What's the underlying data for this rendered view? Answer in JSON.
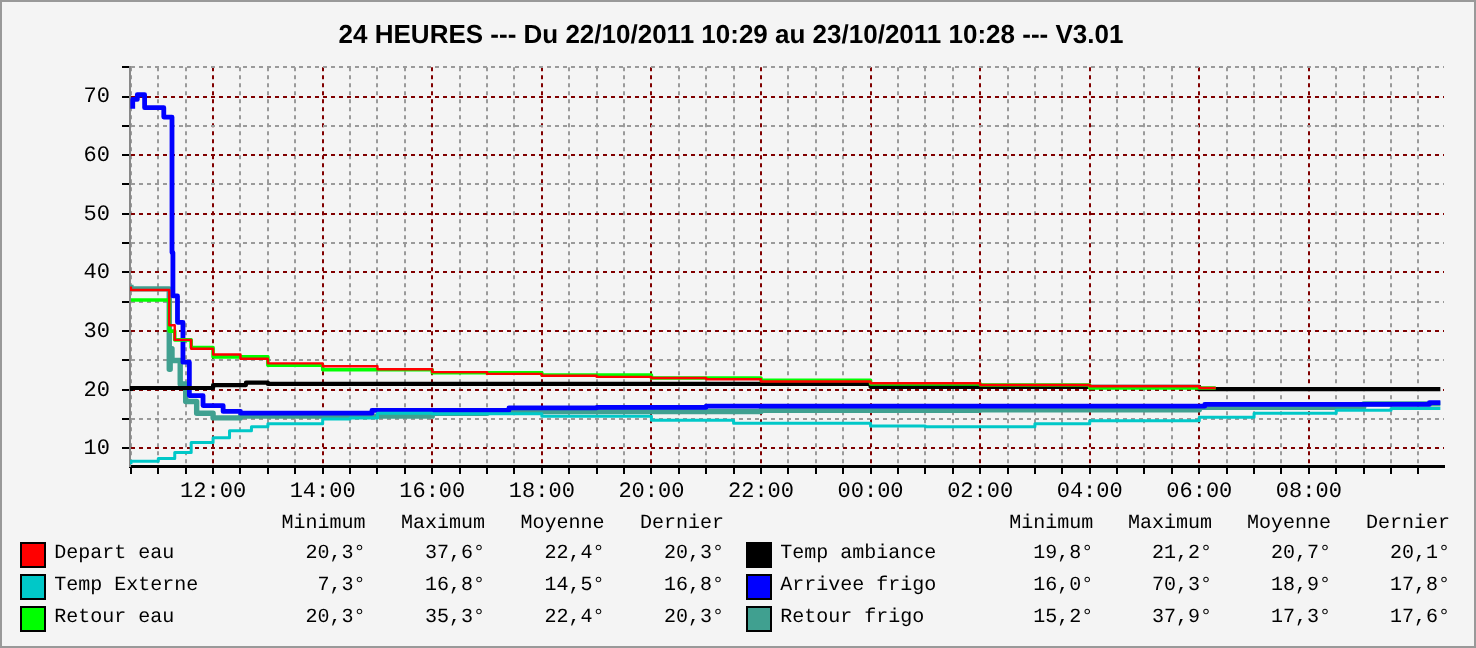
{
  "chart_data": {
    "type": "step",
    "title": "24 HEURES --- Du 22/10/2011 10:29 au 23/10/2011 10:28 --- V3.01",
    "xlim": [
      "2011-10-22T10:29",
      "2011-10-23T10:28"
    ],
    "xticks": [
      {
        "value": "2011-10-22T10:30",
        "label": null
      },
      {
        "value": "2011-10-22T11:00",
        "label": null
      },
      {
        "value": "2011-10-22T11:30",
        "label": null
      },
      {
        "value": "2011-10-22T12:00",
        "label": "12:00"
      },
      {
        "value": "2011-10-22T12:30",
        "label": null
      },
      {
        "value": "2011-10-22T13:00",
        "label": null
      },
      {
        "value": "2011-10-22T13:30",
        "label": null
      },
      {
        "value": "2011-10-22T14:00",
        "label": "14:00"
      },
      {
        "value": "2011-10-22T14:30",
        "label": null
      },
      {
        "value": "2011-10-22T15:00",
        "label": null
      },
      {
        "value": "2011-10-22T15:30",
        "label": null
      },
      {
        "value": "2011-10-22T16:00",
        "label": "16:00"
      },
      {
        "value": "2011-10-22T16:30",
        "label": null
      },
      {
        "value": "2011-10-22T17:00",
        "label": null
      },
      {
        "value": "2011-10-22T17:30",
        "label": null
      },
      {
        "value": "2011-10-22T18:00",
        "label": "18:00"
      },
      {
        "value": "2011-10-22T18:30",
        "label": null
      },
      {
        "value": "2011-10-22T19:00",
        "label": null
      },
      {
        "value": "2011-10-22T19:30",
        "label": null
      },
      {
        "value": "2011-10-22T20:00",
        "label": "20:00"
      },
      {
        "value": "2011-10-22T20:30",
        "label": null
      },
      {
        "value": "2011-10-22T21:00",
        "label": null
      },
      {
        "value": "2011-10-22T21:30",
        "label": null
      },
      {
        "value": "2011-10-22T22:00",
        "label": "22:00"
      },
      {
        "value": "2011-10-22T22:30",
        "label": null
      },
      {
        "value": "2011-10-22T23:00",
        "label": null
      },
      {
        "value": "2011-10-22T23:30",
        "label": null
      },
      {
        "value": "2011-10-23T00:00",
        "label": "00:00"
      },
      {
        "value": "2011-10-23T00:30",
        "label": null
      },
      {
        "value": "2011-10-23T01:00",
        "label": null
      },
      {
        "value": "2011-10-23T01:30",
        "label": null
      },
      {
        "value": "2011-10-23T02:00",
        "label": "02:00"
      },
      {
        "value": "2011-10-23T02:30",
        "label": null
      },
      {
        "value": "2011-10-23T03:00",
        "label": null
      },
      {
        "value": "2011-10-23T03:30",
        "label": null
      },
      {
        "value": "2011-10-23T04:00",
        "label": "04:00"
      },
      {
        "value": "2011-10-23T04:30",
        "label": null
      },
      {
        "value": "2011-10-23T05:00",
        "label": null
      },
      {
        "value": "2011-10-23T05:30",
        "label": null
      },
      {
        "value": "2011-10-23T06:00",
        "label": "06:00"
      },
      {
        "value": "2011-10-23T06:30",
        "label": null
      },
      {
        "value": "2011-10-23T07:00",
        "label": null
      },
      {
        "value": "2011-10-23T07:30",
        "label": null
      },
      {
        "value": "2011-10-23T08:00",
        "label": "08:00"
      },
      {
        "value": "2011-10-23T08:30",
        "label": null
      },
      {
        "value": "2011-10-23T09:00",
        "label": null
      },
      {
        "value": "2011-10-23T09:30",
        "label": null
      },
      {
        "value": "2011-10-23T10:00",
        "label": null
      }
    ],
    "ylim": [
      7,
      75
    ],
    "yticks": [
      10,
      {
        "value": 15,
        "label": null
      },
      20,
      {
        "value": 25,
        "label": null
      },
      30,
      {
        "value": 35,
        "label": null
      },
      40,
      {
        "value": 45,
        "label": null
      },
      50,
      {
        "value": 55,
        "label": null
      },
      60,
      {
        "value": 65,
        "label": null
      },
      70,
      {
        "value": 75,
        "label": null
      }
    ],
    "grid": true,
    "legend": "bottom",
    "series": [
      {
        "name": "Depart eau",
        "color": "#ff0000",
        "x": [
          "2011-10-22T10:30",
          "2011-10-22T11:00",
          "2011-10-22T11:12",
          "2011-10-22T11:18",
          "2011-10-22T11:36",
          "2011-10-22T12:00",
          "2011-10-22T12:30",
          "2011-10-22T13:00",
          "2011-10-22T14:00",
          "2011-10-22T15:00",
          "2011-10-22T16:00",
          "2011-10-22T17:00",
          "2011-10-22T18:00",
          "2011-10-22T19:00",
          "2011-10-22T20:00",
          "2011-10-22T21:00",
          "2011-10-22T22:00",
          "2011-10-23T00:00",
          "2011-10-23T02:00",
          "2011-10-23T04:00",
          "2011-10-23T06:00",
          "2011-10-23T06:18"
        ],
        "values": [
          37.6,
          37.0,
          37.0,
          31,
          28.5,
          27,
          26,
          25.3,
          24.5,
          24,
          23.5,
          23.0,
          22.7,
          22.4,
          22.2,
          22.0,
          21.8,
          21.4,
          21.1,
          20.8,
          20.6,
          20.3
        ]
      },
      {
        "name": "Temp Externe",
        "color": "#00c8c8",
        "x": [
          "2011-10-22T10:30",
          "2011-10-22T11:00",
          "2011-10-22T11:18",
          "2011-10-22T11:36",
          "2011-10-22T12:00",
          "2011-10-22T12:18",
          "2011-10-22T12:42",
          "2011-10-22T13:00",
          "2011-10-22T14:00",
          "2011-10-22T14:30",
          "2011-10-22T15:00",
          "2011-10-22T16:00",
          "2011-10-22T18:00",
          "2011-10-22T20:00",
          "2011-10-22T21:30",
          "2011-10-23T00:00",
          "2011-10-23T01:00",
          "2011-10-23T03:00",
          "2011-10-23T04:00",
          "2011-10-23T06:00",
          "2011-10-23T07:00",
          "2011-10-23T08:30",
          "2011-10-23T09:30",
          "2011-10-23T10:24"
        ],
        "values": [
          7.3,
          7.8,
          8.3,
          9.3,
          11.0,
          11.8,
          13.0,
          13.7,
          14.2,
          15.0,
          15.2,
          16.0,
          15.9,
          15.5,
          14.8,
          14.3,
          13.8,
          13.7,
          14.2,
          14.7,
          15.3,
          16.0,
          16.5,
          16.8
        ]
      },
      {
        "name": "Retour eau",
        "color": "#00ff00",
        "x": [
          "2011-10-22T10:30",
          "2011-10-22T11:12",
          "2011-10-22T11:18",
          "2011-10-22T11:36",
          "2011-10-22T12:00",
          "2011-10-22T13:00",
          "2011-10-22T14:00",
          "2011-10-22T16:00",
          "2011-10-22T18:00",
          "2011-10-22T20:00",
          "2011-10-22T22:00",
          "2011-10-23T00:00",
          "2011-10-23T02:00",
          "2011-10-23T04:00",
          "2011-10-23T06:18"
        ],
        "values": [
          35.3,
          35.3,
          30,
          28.5,
          27.2,
          25.6,
          24.2,
          23.4,
          22.9,
          22.5,
          22.0,
          21.6,
          21.0,
          20.8,
          20.3
        ]
      },
      {
        "name": "Temp ambiance",
        "color": "#000000",
        "x": [
          "2011-10-22T10:30",
          "2011-10-22T12:00",
          "2011-10-22T12:36",
          "2011-10-22T13:00",
          "2011-10-23T00:00",
          "2011-10-23T06:00",
          "2011-10-23T10:24"
        ],
        "values": [
          19.8,
          20.3,
          20.8,
          21.2,
          21.0,
          20.5,
          20.1
        ]
      },
      {
        "name": "Arrivee frigo",
        "color": "#0000ff",
        "x": [
          "2011-10-22T10:32",
          "2011-10-22T10:37",
          "2011-10-22T10:45",
          "2011-10-22T10:51",
          "2011-10-22T11:06",
          "2011-10-22T11:09",
          "2011-10-22T11:15",
          "2011-10-22T11:16",
          "2011-10-22T11:21",
          "2011-10-22T11:27",
          "2011-10-22T11:34",
          "2011-10-22T11:49",
          "2011-10-22T12:11",
          "2011-10-22T12:30",
          "2011-10-22T14:54",
          "2011-10-22T17:24",
          "2011-10-22T19:00",
          "2011-10-22T21:00",
          "2011-10-23T06:06",
          "2011-10-23T06:48",
          "2011-10-23T10:12",
          "2011-10-23T10:24"
        ],
        "values": [
          67.9,
          69.5,
          70.3,
          68.1,
          68.1,
          66.5,
          66.5,
          43.4,
          36,
          31.5,
          24.7,
          19,
          17.3,
          16.3,
          16.0,
          16.5,
          16.9,
          17.0,
          17.2,
          17.5,
          17.5,
          17.8
        ]
      },
      {
        "name": "Retour frigo",
        "color": "#40a090",
        "x": [
          "2011-10-22T10:30",
          "2011-10-22T11:06",
          "2011-10-22T11:12",
          "2011-10-22T11:13",
          "2011-10-22T11:15",
          "2011-10-22T11:24",
          "2011-10-22T11:30",
          "2011-10-22T11:42",
          "2011-10-22T12:00",
          "2011-10-22T12:30",
          "2011-10-22T16:00",
          "2011-10-22T17:00",
          "2011-10-22T20:00",
          "2011-10-22T22:00",
          "2011-10-23T02:00",
          "2011-10-23T06:00",
          "2011-10-23T09:00",
          "2011-10-23T10:24"
        ],
        "values": [
          37.9,
          37.2,
          37.2,
          23.5,
          27,
          25,
          21,
          18,
          16,
          15.2,
          15.5,
          16.0,
          16.3,
          16.3,
          16.5,
          16.6,
          17.0,
          17.6
        ]
      }
    ],
    "annotations": [
      "Minimum",
      "Maximum",
      "Moyenne",
      "Dernier",
      "20,3°",
      "37,6°",
      "22,4°",
      "20,3°",
      "7,3°",
      "16,8°",
      "14,5°",
      "16,8°",
      "20,3°",
      "35,3°",
      "22,4°",
      "20,3°",
      "19,8°",
      "21,2°",
      "20,7°",
      "20,1°",
      "16,0°",
      "70,3°",
      "18,9°",
      "17,8°",
      "15,2°",
      "37,9°",
      "17,3°",
      "17,6°"
    ]
  }
}
